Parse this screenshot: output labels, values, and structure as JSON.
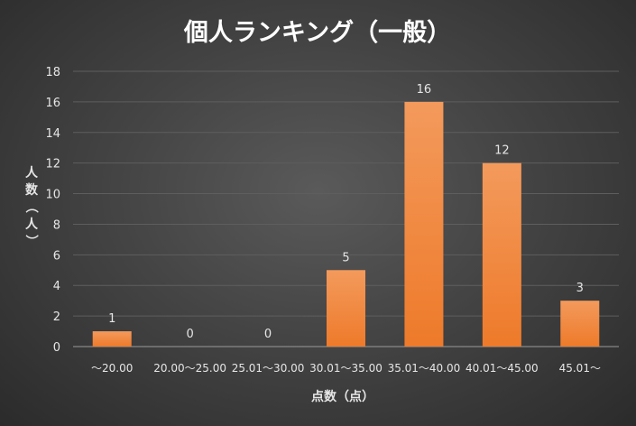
{
  "chart_data": {
    "type": "bar",
    "title": "個人ランキング（一般）",
    "xlabel": "点数（点）",
    "ylabel": "人数（人）",
    "categories": [
      "～20.00",
      "20.00～25.00",
      "25.01～30.00",
      "30.01～35.00",
      "35.01～40.00",
      "40.01～45.00",
      "45.01～"
    ],
    "values": [
      1,
      0,
      0,
      5,
      16,
      12,
      3
    ],
    "ylim": [
      0,
      18
    ],
    "yticks": [
      0,
      2,
      4,
      6,
      8,
      10,
      12,
      14,
      16,
      18
    ],
    "grid": true,
    "legend": "none",
    "data_labels": true
  },
  "colors": {
    "bar_top": "#f39a5c",
    "bar_bottom": "#ee7a2a",
    "background": "#444444",
    "text": "#e6e6e6"
  }
}
